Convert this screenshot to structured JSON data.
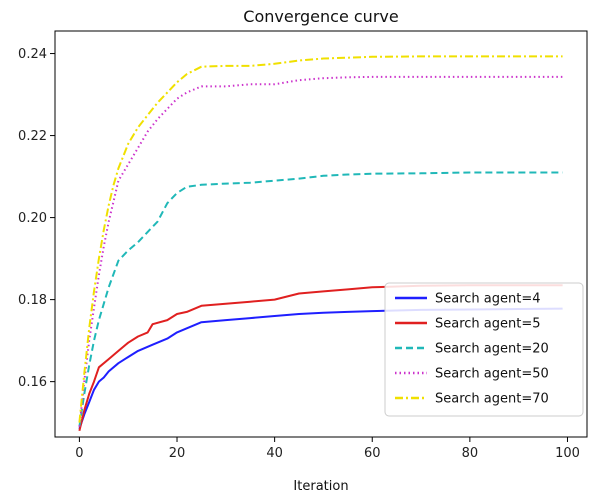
{
  "chart_data": {
    "type": "line",
    "title": "Convergence curve",
    "xlabel": "Iteration",
    "ylabel": "",
    "xlim": [
      -5,
      104
    ],
    "ylim": [
      0.1465,
      0.2455
    ],
    "xticks": [
      0,
      20,
      40,
      60,
      80,
      100
    ],
    "yticks": [
      0.16,
      0.18,
      0.2,
      0.22,
      0.24
    ],
    "ytick_labels": [
      "0.16",
      "0.18",
      "0.20",
      "0.22",
      "0.24"
    ],
    "grid": false,
    "legend_position": "lower-right",
    "series": [
      {
        "name": "Search agent=4",
        "color": "#1f1fff",
        "dash": "solid",
        "x": [
          0,
          1,
          2,
          3,
          4,
          5,
          6,
          8,
          10,
          12,
          15,
          18,
          20,
          22,
          25,
          30,
          35,
          40,
          45,
          50,
          55,
          60,
          70,
          80,
          90,
          99
        ],
        "y": [
          0.1485,
          0.152,
          0.155,
          0.158,
          0.16,
          0.161,
          0.1625,
          0.1645,
          0.166,
          0.1675,
          0.169,
          0.1705,
          0.172,
          0.173,
          0.1745,
          0.175,
          0.1755,
          0.176,
          0.1765,
          0.1768,
          0.177,
          0.1772,
          0.1775,
          0.1776,
          0.1777,
          0.1778
        ]
      },
      {
        "name": "Search agent=5",
        "color": "#e02020",
        "dash": "solid",
        "x": [
          0,
          1,
          2,
          3,
          4,
          6,
          8,
          10,
          12,
          14,
          15,
          18,
          20,
          22,
          25,
          30,
          35,
          40,
          45,
          50,
          55,
          60,
          70,
          80,
          90,
          99
        ],
        "y": [
          0.148,
          0.153,
          0.157,
          0.16,
          0.1635,
          0.1655,
          0.1675,
          0.1695,
          0.171,
          0.172,
          0.174,
          0.175,
          0.1765,
          0.177,
          0.1785,
          0.179,
          0.1795,
          0.18,
          0.1815,
          0.182,
          0.1825,
          0.183,
          0.1834,
          0.1835,
          0.1835,
          0.1835
        ]
      },
      {
        "name": "Search agent=20",
        "color": "#20b8b8",
        "dash": "dashed",
        "x": [
          0,
          1,
          2,
          3,
          4,
          5,
          6,
          8,
          10,
          12,
          14,
          16,
          18,
          20,
          22,
          25,
          30,
          35,
          40,
          45,
          50,
          55,
          60,
          70,
          80,
          90,
          99
        ],
        "y": [
          0.149,
          0.157,
          0.164,
          0.17,
          0.175,
          0.179,
          0.183,
          0.1895,
          0.192,
          0.194,
          0.1965,
          0.199,
          0.2035,
          0.206,
          0.2075,
          0.208,
          0.2083,
          0.2085,
          0.209,
          0.2095,
          0.2102,
          0.2105,
          0.2107,
          0.2108,
          0.211,
          0.211,
          0.211
        ]
      },
      {
        "name": "Search agent=50",
        "color": "#cc33cc",
        "dash": "dotted",
        "x": [
          0,
          1,
          2,
          3,
          4,
          5,
          6,
          7,
          8,
          10,
          12,
          14,
          16,
          18,
          20,
          22,
          25,
          30,
          35,
          40,
          45,
          50,
          55,
          60,
          70,
          80,
          90,
          99
        ],
        "y": [
          0.149,
          0.16,
          0.17,
          0.178,
          0.186,
          0.193,
          0.199,
          0.204,
          0.209,
          0.213,
          0.217,
          0.221,
          0.224,
          0.2265,
          0.229,
          0.2305,
          0.232,
          0.232,
          0.2325,
          0.2325,
          0.2335,
          0.234,
          0.2342,
          0.2343,
          0.2343,
          0.2343,
          0.2343,
          0.2343
        ]
      },
      {
        "name": "Search agent=70",
        "color": "#f0e000",
        "dash": "dashdot",
        "x": [
          0,
          1,
          2,
          3,
          4,
          5,
          6,
          7,
          8,
          10,
          12,
          14,
          16,
          18,
          20,
          22,
          25,
          30,
          35,
          40,
          45,
          50,
          55,
          60,
          70,
          80,
          90,
          99
        ],
        "y": [
          0.15,
          0.162,
          0.173,
          0.182,
          0.19,
          0.197,
          0.203,
          0.208,
          0.212,
          0.218,
          0.222,
          0.225,
          0.228,
          0.2305,
          0.233,
          0.235,
          0.2368,
          0.237,
          0.237,
          0.2375,
          0.2383,
          0.2388,
          0.239,
          0.2392,
          0.2393,
          0.2393,
          0.2393,
          0.2393
        ]
      }
    ]
  }
}
